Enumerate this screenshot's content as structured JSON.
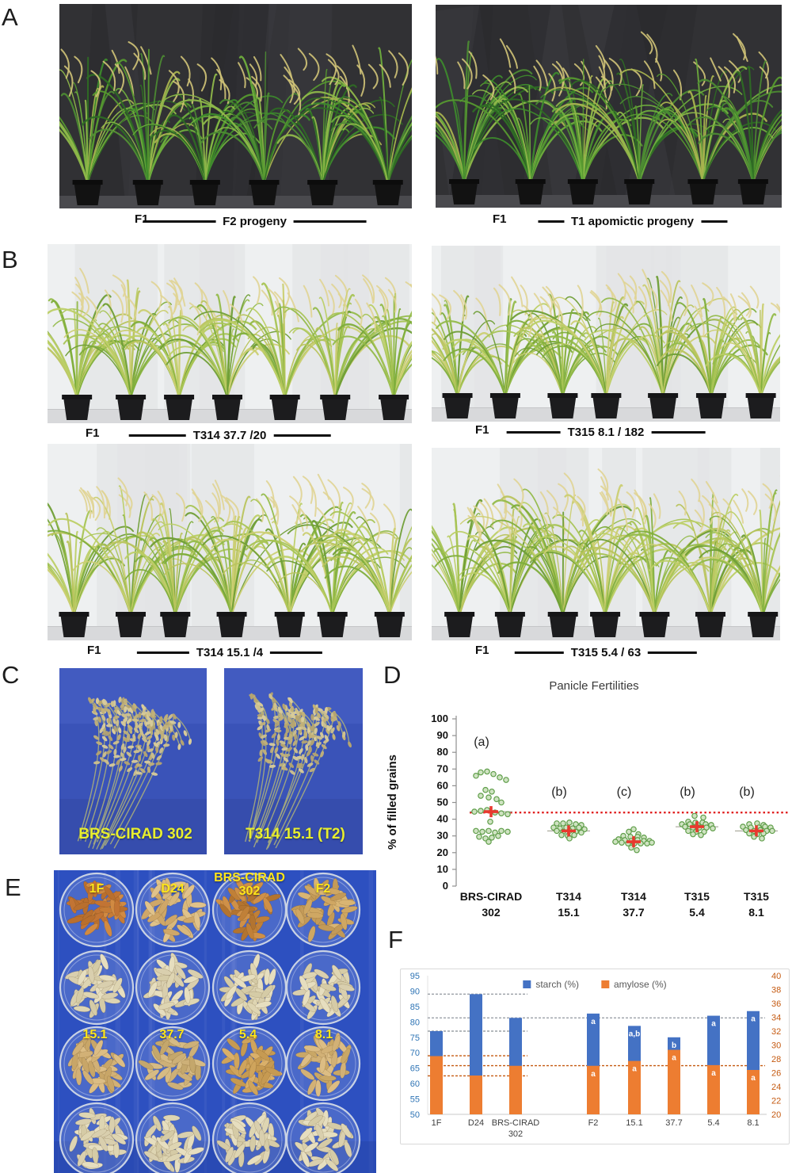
{
  "panels": {
    "A": {
      "letter": "A",
      "captions": [
        {
          "f1": "F1",
          "label": "F2 progeny"
        },
        {
          "f1": "F1",
          "label": "T1 apomictic progeny"
        }
      ]
    },
    "B": {
      "letter": "B",
      "captions": [
        {
          "f1": "F1",
          "label": "T314 37.7 /20"
        },
        {
          "f1": "F1",
          "label": "T315 8.1 / 182"
        },
        {
          "f1": "F1",
          "label": "T314 15.1 /4"
        },
        {
          "f1": "F1",
          "label": "T315 5.4 / 63"
        }
      ]
    },
    "C": {
      "letter": "C",
      "labels": [
        "BRS-CIRAD 302",
        "T314 15.1 (T2)"
      ],
      "label_color": "#e8ef2e"
    },
    "D": {
      "letter": "D"
    },
    "E": {
      "letter": "E",
      "dish_labels": {
        "row1": [
          "1F",
          "D24",
          "BRS-CIRAD 302",
          "F2"
        ],
        "row3": [
          "15.1",
          "37.7",
          "5.4",
          "8.1"
        ]
      },
      "label_color": "#ffe61a"
    },
    "F": {
      "letter": "F"
    }
  },
  "chart_data": [
    {
      "type": "scatter",
      "title": "Panicle Fertilities",
      "ylabel": "% of filled grains",
      "ylim": [
        0,
        100
      ],
      "ytick_step": 10,
      "categories": [
        "BRS-CIRAD\n302",
        "T314\n15.1",
        "T314\n37.7",
        "T315\n5.4",
        "T315\n8.1"
      ],
      "group_letters": [
        "(a)",
        "(b)",
        "(c)",
        "(b)",
        "(b)"
      ],
      "means": [
        44.5,
        33,
        26.5,
        35.5,
        33
      ],
      "reference_line_y": 44,
      "reference_line_color": "#e02020",
      "point_fill": "#cfe3c2",
      "point_stroke": "#5f9e49",
      "mean_marker_color": "#e8392e",
      "points": [
        [
          [
            -13,
            68
          ],
          [
            -5,
            68.5
          ],
          [
            3,
            67
          ],
          [
            -19,
            66
          ],
          [
            11,
            65
          ],
          [
            19,
            63.5
          ],
          [
            -7,
            57.5
          ],
          [
            1,
            56.5
          ],
          [
            -13,
            54
          ],
          [
            -3,
            53
          ],
          [
            7,
            52
          ],
          [
            13,
            50
          ],
          [
            -21,
            44.5
          ],
          [
            -13,
            45
          ],
          [
            -5,
            45.5
          ],
          [
            5,
            44
          ],
          [
            13,
            43.5
          ],
          [
            21,
            43
          ],
          [
            -1,
            38.5
          ],
          [
            -19,
            33
          ],
          [
            -11,
            32.5
          ],
          [
            -3,
            33
          ],
          [
            5,
            32
          ],
          [
            13,
            33
          ],
          [
            21,
            32.5
          ],
          [
            -15,
            29.5
          ],
          [
            -7,
            28.5
          ],
          [
            1,
            29
          ],
          [
            9,
            30
          ],
          [
            -3,
            26.5
          ]
        ],
        [
          [
            -15,
            37.5
          ],
          [
            -7,
            37.5
          ],
          [
            1,
            38
          ],
          [
            9,
            37
          ],
          [
            16,
            36.5
          ],
          [
            -19,
            35
          ],
          [
            -11,
            34.5
          ],
          [
            -3,
            35
          ],
          [
            5,
            34.5
          ],
          [
            13,
            35
          ],
          [
            20,
            34
          ],
          [
            -15,
            33
          ],
          [
            -7,
            32.5
          ],
          [
            1,
            33
          ],
          [
            9,
            32.5
          ],
          [
            16,
            32
          ],
          [
            -9,
            30.5
          ],
          [
            -1,
            30
          ],
          [
            7,
            30.5
          ],
          [
            1,
            28.5
          ]
        ],
        [
          [
            0,
            34
          ],
          [
            -6,
            32.5
          ],
          [
            6,
            31
          ],
          [
            -13,
            30
          ],
          [
            -4,
            29.5
          ],
          [
            5,
            29.5
          ],
          [
            13,
            29
          ],
          [
            -19,
            28
          ],
          [
            -11,
            27.5
          ],
          [
            -3,
            27
          ],
          [
            5,
            27.5
          ],
          [
            13,
            27
          ],
          [
            20,
            27
          ],
          [
            -23,
            26.5
          ],
          [
            -15,
            26
          ],
          [
            -7,
            25.5
          ],
          [
            1,
            25.5
          ],
          [
            9,
            25.5
          ],
          [
            17,
            25.5
          ],
          [
            23,
            26
          ],
          [
            -3,
            23
          ],
          [
            4,
            21.5
          ]
        ],
        [
          [
            -3,
            42
          ],
          [
            8,
            41
          ],
          [
            -11,
            38.5
          ],
          [
            -2,
            38
          ],
          [
            7,
            38
          ],
          [
            -19,
            37
          ],
          [
            -9,
            37
          ],
          [
            1,
            36.5
          ],
          [
            11,
            37
          ],
          [
            18,
            36.5
          ],
          [
            -15,
            35.5
          ],
          [
            -5,
            35
          ],
          [
            3,
            35
          ],
          [
            12,
            35
          ],
          [
            20,
            34.5
          ],
          [
            -11,
            33
          ],
          [
            -1,
            32.5
          ],
          [
            9,
            32.5
          ],
          [
            -5,
            31
          ],
          [
            5,
            30.5
          ]
        ],
        [
          [
            -9,
            37
          ],
          [
            1,
            37.5
          ],
          [
            9,
            36.5
          ],
          [
            -17,
            35.5
          ],
          [
            -7,
            35
          ],
          [
            3,
            35
          ],
          [
            11,
            35.5
          ],
          [
            18,
            35
          ],
          [
            -13,
            33.5
          ],
          [
            -3,
            33
          ],
          [
            5,
            33.5
          ],
          [
            13,
            33
          ],
          [
            20,
            33
          ],
          [
            -9,
            31.5
          ],
          [
            1,
            31
          ],
          [
            9,
            31.5
          ],
          [
            -3,
            29.5
          ],
          [
            7,
            28.5
          ]
        ]
      ]
    },
    {
      "type": "bar",
      "categories": [
        "1F",
        "D24",
        "BRS-CIRAD\n302",
        "F2",
        "15.1",
        "37.7",
        "5.4",
        "8.1"
      ],
      "gap_after_index": 2,
      "series": [
        {
          "name": "starch (%)",
          "axis": "left",
          "color": "#4472c4",
          "values": [
            77,
            89,
            81.3,
            82.7,
            78.7,
            75,
            82,
            83.5
          ],
          "letters": [
            "",
            "",
            "",
            "a",
            "a,b",
            "b",
            "a",
            "a"
          ]
        },
        {
          "name": "amylose (%)",
          "axis": "right",
          "color": "#ed7d31",
          "values": [
            28.4,
            25.6,
            27.0,
            27.0,
            27.7,
            29.3,
            27.1,
            26.4
          ],
          "letters": [
            "",
            "",
            "",
            "a",
            "a",
            "a",
            "a",
            "a"
          ]
        }
      ],
      "left_axis": {
        "min": 50,
        "max": 95,
        "step": 5,
        "color": "#2e74b5"
      },
      "right_axis": {
        "min": 20,
        "max": 40,
        "step": 2,
        "color": "#c55a11"
      },
      "ref_lines_gray": [
        {
          "y": 89,
          "span": "left"
        },
        {
          "y": 81.3,
          "span": "full"
        },
        {
          "y": 77,
          "span": "left"
        }
      ],
      "ref_lines_orange": [
        {
          "y": 69,
          "span": "left"
        },
        {
          "y": 65.8,
          "span": "full"
        },
        {
          "y": 62.5,
          "span": "left"
        }
      ]
    }
  ]
}
